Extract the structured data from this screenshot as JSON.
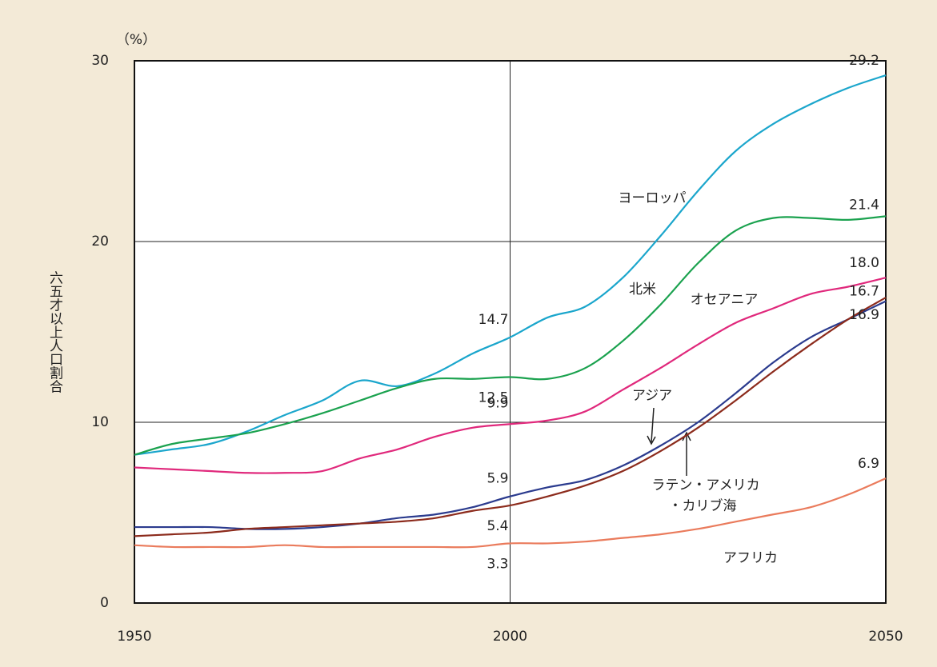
{
  "chart_data": {
    "type": "line",
    "unit": "（%）",
    "ylabel": "六五才以上人口割合",
    "x": [
      1950,
      1955,
      1960,
      1965,
      1970,
      1975,
      1980,
      1985,
      1990,
      1995,
      2000,
      2005,
      2010,
      2015,
      2020,
      2025,
      2030,
      2035,
      2040,
      2045,
      2050
    ],
    "xlim": [
      1950,
      2050
    ],
    "xticks": [
      1950,
      2000,
      2050
    ],
    "ylim": [
      0,
      30
    ],
    "yticks": [
      0,
      10,
      20,
      30
    ],
    "grid": true,
    "series": [
      {
        "color": "#1ba6cc",
        "values": [
          8.2,
          8.5,
          8.8,
          9.5,
          10.4,
          11.2,
          12.3,
          12.0,
          12.7,
          13.8,
          14.7,
          15.8,
          16.4,
          18.0,
          20.3,
          22.8,
          25.0,
          26.5,
          27.6,
          28.5,
          29.2
        ],
        "value_labels": [
          null,
          null,
          null,
          null,
          null,
          null,
          null,
          null,
          null,
          null,
          "14.7",
          null,
          null,
          null,
          null,
          null,
          null,
          null,
          null,
          null,
          "29.2"
        ]
      },
      {
        "color": "#1ba24f",
        "values": [
          8.2,
          8.8,
          9.1,
          9.4,
          9.9,
          10.5,
          11.2,
          11.9,
          12.4,
          12.4,
          12.5,
          12.4,
          13.0,
          14.5,
          16.5,
          18.8,
          20.6,
          21.3,
          21.3,
          21.2,
          21.4
        ],
        "value_labels": [
          null,
          null,
          null,
          null,
          null,
          null,
          null,
          null,
          null,
          null,
          "12.5",
          null,
          null,
          null,
          null,
          null,
          null,
          null,
          null,
          null,
          "21.4"
        ]
      },
      {
        "color": "#e0297c",
        "values": [
          7.5,
          7.4,
          7.3,
          7.2,
          7.2,
          7.3,
          8.0,
          8.5,
          9.2,
          9.7,
          9.9,
          10.1,
          10.6,
          11.8,
          13.0,
          14.3,
          15.5,
          16.3,
          17.1,
          17.5,
          18.0
        ],
        "value_labels": [
          null,
          null,
          null,
          null,
          null,
          null,
          null,
          null,
          null,
          null,
          "9.9",
          null,
          null,
          null,
          null,
          null,
          null,
          null,
          null,
          null,
          "18.0"
        ]
      },
      {
        "color": "#2b3b8e",
        "values": [
          4.2,
          4.2,
          4.2,
          4.1,
          4.1,
          4.2,
          4.4,
          4.7,
          4.9,
          5.3,
          5.9,
          6.4,
          6.8,
          7.6,
          8.7,
          10.0,
          11.6,
          13.3,
          14.7,
          15.7,
          16.7
        ],
        "value_labels": [
          null,
          null,
          null,
          null,
          null,
          null,
          null,
          null,
          null,
          null,
          "5.9",
          null,
          null,
          null,
          null,
          null,
          null,
          null,
          null,
          null,
          "16.7"
        ]
      },
      {
        "color": "#8c2b1c",
        "values": [
          3.7,
          3.8,
          3.9,
          4.1,
          4.2,
          4.3,
          4.4,
          4.5,
          4.7,
          5.1,
          5.4,
          5.9,
          6.5,
          7.3,
          8.4,
          9.7,
          11.2,
          12.8,
          14.3,
          15.7,
          16.9
        ],
        "value_labels": [
          null,
          null,
          null,
          null,
          null,
          null,
          null,
          null,
          null,
          null,
          "5.4",
          null,
          null,
          null,
          null,
          null,
          null,
          null,
          null,
          null,
          "16.9"
        ]
      },
      {
        "color": "#ea7b5c",
        "values": [
          3.2,
          3.1,
          3.1,
          3.1,
          3.2,
          3.1,
          3.1,
          3.1,
          3.1,
          3.1,
          3.3,
          3.3,
          3.4,
          3.6,
          3.8,
          4.1,
          4.5,
          4.9,
          5.3,
          6.0,
          6.9
        ],
        "value_labels": [
          null,
          null,
          null,
          null,
          null,
          null,
          null,
          null,
          null,
          null,
          "3.3",
          null,
          null,
          null,
          null,
          null,
          null,
          null,
          null,
          null,
          "6.9"
        ]
      }
    ],
    "annotations": [
      "ヨーロッパ",
      "北米",
      "オセアニア",
      "アジア",
      "ラテン・アメリカ",
      "・カリブ海",
      "アフリカ"
    ]
  }
}
